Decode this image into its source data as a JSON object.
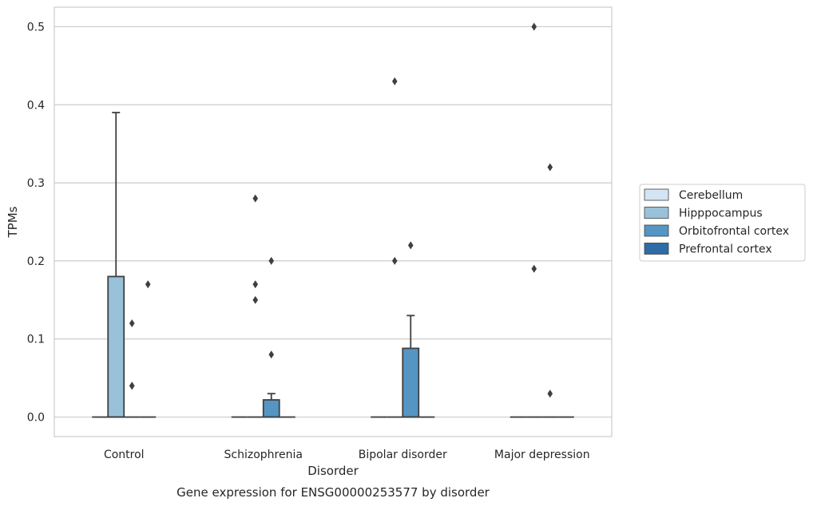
{
  "chart_data": {
    "type": "box",
    "title": "",
    "caption": "Gene expression for ENSG00000253577 by disorder",
    "xlabel": "Disorder",
    "ylabel": "TPMs",
    "ylim": [
      -0.025,
      0.525
    ],
    "yticks": [
      "0.0",
      "0.1",
      "0.2",
      "0.3",
      "0.4",
      "0.5"
    ],
    "grid": true,
    "legend_position": "right",
    "categories": [
      "Control",
      "Schizophrenia",
      "Bipolar disorder",
      "Major depression"
    ],
    "series": [
      {
        "name": "Cerebellum",
        "color": "#d3e4f3",
        "boxes": [
          {
            "q1": 0,
            "median": 0,
            "q3": 0,
            "whisker_low": 0,
            "whisker_high": 0,
            "outliers": []
          },
          {
            "q1": 0,
            "median": 0,
            "q3": 0,
            "whisker_low": 0,
            "whisker_high": 0,
            "outliers": []
          },
          {
            "q1": 0,
            "median": 0,
            "q3": 0,
            "whisker_low": 0,
            "whisker_high": 0,
            "outliers": []
          },
          {
            "q1": 0,
            "median": 0,
            "q3": 0,
            "whisker_low": 0,
            "whisker_high": 0,
            "outliers": []
          }
        ]
      },
      {
        "name": "Hipppocampus",
        "color": "#9ac1da",
        "boxes": [
          {
            "q1": 0,
            "median": 0,
            "q3": 0.18,
            "whisker_low": 0,
            "whisker_high": 0.39,
            "outliers": []
          },
          {
            "q1": 0,
            "median": 0,
            "q3": 0,
            "whisker_low": 0,
            "whisker_high": 0,
            "outliers": [
              0.15,
              0.17,
              0.28
            ]
          },
          {
            "q1": 0,
            "median": 0,
            "q3": 0,
            "whisker_low": 0,
            "whisker_high": 0,
            "outliers": [
              0.2,
              0.43
            ]
          },
          {
            "q1": 0,
            "median": 0,
            "q3": 0,
            "whisker_low": 0,
            "whisker_high": 0,
            "outliers": [
              0.19,
              0.5
            ]
          }
        ]
      },
      {
        "name": "Orbitofrontal cortex",
        "color": "#5595c4",
        "boxes": [
          {
            "q1": 0,
            "median": 0,
            "q3": 0,
            "whisker_low": 0,
            "whisker_high": 0,
            "outliers": [
              0.04,
              0.04,
              0.12
            ]
          },
          {
            "q1": 0,
            "median": 0,
            "q3": 0.022,
            "whisker_low": 0,
            "whisker_high": 0.03,
            "outliers": [
              0.08,
              0.2
            ]
          },
          {
            "q1": 0,
            "median": 0,
            "q3": 0.088,
            "whisker_low": 0,
            "whisker_high": 0.13,
            "outliers": [
              0.22
            ]
          },
          {
            "q1": 0,
            "median": 0,
            "q3": 0,
            "whisker_low": 0,
            "whisker_high": 0,
            "outliers": [
              0.03,
              0.32
            ]
          }
        ]
      },
      {
        "name": "Prefrontal cortex",
        "color": "#2d6ca7",
        "boxes": [
          {
            "q1": 0,
            "median": 0,
            "q3": 0,
            "whisker_low": 0,
            "whisker_high": 0,
            "outliers": [
              0.17
            ]
          },
          {
            "q1": 0,
            "median": 0,
            "q3": 0,
            "whisker_low": 0,
            "whisker_high": 0,
            "outliers": []
          },
          {
            "q1": 0,
            "median": 0,
            "q3": 0,
            "whisker_low": 0,
            "whisker_high": 0,
            "outliers": []
          },
          {
            "q1": 0,
            "median": 0,
            "q3": 0,
            "whisker_low": 0,
            "whisker_high": 0,
            "outliers": []
          }
        ]
      }
    ]
  }
}
